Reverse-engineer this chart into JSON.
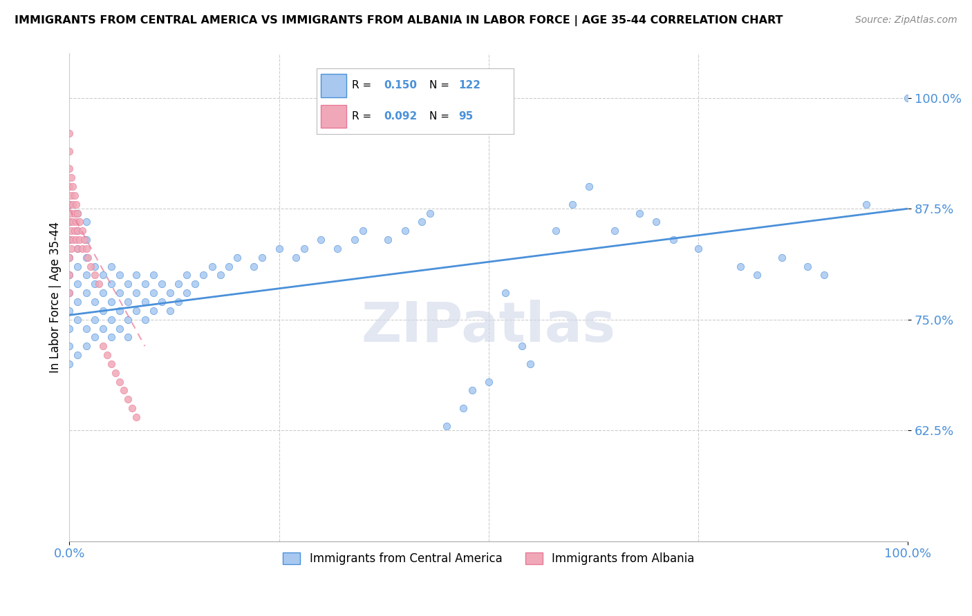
{
  "title": "IMMIGRANTS FROM CENTRAL AMERICA VS IMMIGRANTS FROM ALBANIA IN LABOR FORCE | AGE 35-44 CORRELATION CHART",
  "source": "Source: ZipAtlas.com",
  "ylabel": "In Labor Force | Age 35-44",
  "xmin": 0.0,
  "xmax": 1.0,
  "ymin": 0.5,
  "ymax": 1.05,
  "yticks": [
    0.625,
    0.75,
    0.875,
    1.0
  ],
  "ytick_labels": [
    "62.5%",
    "75.0%",
    "87.5%",
    "100.0%"
  ],
  "legend_r_blue": "0.150",
  "legend_n_blue": "122",
  "legend_r_pink": "0.092",
  "legend_n_pink": "95",
  "color_blue": "#a8c8f0",
  "color_pink": "#f0a8b8",
  "color_blue_dark": "#4a90d9",
  "color_pink_dark": "#e87896",
  "watermark": "ZIPatlas",
  "blue_scatter_x": [
    0.0,
    0.0,
    0.0,
    0.0,
    0.0,
    0.0,
    0.0,
    0.0,
    0.0,
    0.0,
    0.01,
    0.01,
    0.01,
    0.01,
    0.01,
    0.01,
    0.01,
    0.01,
    0.02,
    0.02,
    0.02,
    0.02,
    0.02,
    0.02,
    0.02,
    0.03,
    0.03,
    0.03,
    0.03,
    0.03,
    0.04,
    0.04,
    0.04,
    0.04,
    0.05,
    0.05,
    0.05,
    0.05,
    0.05,
    0.06,
    0.06,
    0.06,
    0.06,
    0.07,
    0.07,
    0.07,
    0.07,
    0.08,
    0.08,
    0.08,
    0.09,
    0.09,
    0.09,
    0.1,
    0.1,
    0.1,
    0.11,
    0.11,
    0.12,
    0.12,
    0.13,
    0.13,
    0.14,
    0.14,
    0.15,
    0.16,
    0.17,
    0.18,
    0.19,
    0.2,
    0.22,
    0.23,
    0.25,
    0.27,
    0.28,
    0.3,
    0.32,
    0.34,
    0.35,
    0.38,
    0.4,
    0.42,
    0.43,
    0.45,
    0.47,
    0.48,
    0.5,
    0.52,
    0.54,
    0.55,
    0.58,
    0.6,
    0.62,
    0.65,
    0.68,
    0.7,
    0.72,
    0.75,
    0.8,
    0.82,
    0.85,
    0.88,
    0.9,
    0.95,
    1.0
  ],
  "blue_scatter_y": [
    0.8,
    0.82,
    0.84,
    0.78,
    0.76,
    0.74,
    0.86,
    0.88,
    0.72,
    0.7,
    0.79,
    0.81,
    0.83,
    0.77,
    0.75,
    0.87,
    0.85,
    0.71,
    0.8,
    0.78,
    0.82,
    0.84,
    0.74,
    0.72,
    0.86,
    0.79,
    0.77,
    0.81,
    0.75,
    0.73,
    0.78,
    0.8,
    0.76,
    0.74,
    0.77,
    0.79,
    0.75,
    0.81,
    0.73,
    0.78,
    0.76,
    0.8,
    0.74,
    0.77,
    0.79,
    0.75,
    0.73,
    0.76,
    0.78,
    0.8,
    0.77,
    0.75,
    0.79,
    0.76,
    0.78,
    0.8,
    0.77,
    0.79,
    0.76,
    0.78,
    0.77,
    0.79,
    0.78,
    0.8,
    0.79,
    0.8,
    0.81,
    0.8,
    0.81,
    0.82,
    0.81,
    0.82,
    0.83,
    0.82,
    0.83,
    0.84,
    0.83,
    0.84,
    0.85,
    0.84,
    0.85,
    0.86,
    0.87,
    0.63,
    0.65,
    0.67,
    0.68,
    0.78,
    0.72,
    0.7,
    0.85,
    0.88,
    0.9,
    0.85,
    0.87,
    0.86,
    0.84,
    0.83,
    0.81,
    0.8,
    0.82,
    0.81,
    0.8,
    0.88,
    1.0
  ],
  "pink_scatter_x": [
    0.0,
    0.0,
    0.0,
    0.0,
    0.0,
    0.0,
    0.0,
    0.0,
    0.0,
    0.0,
    0.002,
    0.002,
    0.002,
    0.002,
    0.002,
    0.004,
    0.004,
    0.004,
    0.004,
    0.006,
    0.006,
    0.006,
    0.008,
    0.008,
    0.008,
    0.01,
    0.01,
    0.01,
    0.012,
    0.012,
    0.015,
    0.015,
    0.018,
    0.02,
    0.022,
    0.025,
    0.03,
    0.035,
    0.04,
    0.045,
    0.05,
    0.055,
    0.06,
    0.065,
    0.07,
    0.075,
    0.08
  ],
  "pink_scatter_y": [
    0.88,
    0.9,
    0.92,
    0.94,
    0.96,
    0.84,
    0.82,
    0.8,
    0.86,
    0.78,
    0.89,
    0.91,
    0.87,
    0.85,
    0.83,
    0.88,
    0.86,
    0.84,
    0.9,
    0.87,
    0.85,
    0.89,
    0.86,
    0.84,
    0.88,
    0.85,
    0.87,
    0.83,
    0.86,
    0.84,
    0.85,
    0.83,
    0.84,
    0.83,
    0.82,
    0.81,
    0.8,
    0.79,
    0.72,
    0.71,
    0.7,
    0.69,
    0.68,
    0.67,
    0.66,
    0.65,
    0.64
  ]
}
